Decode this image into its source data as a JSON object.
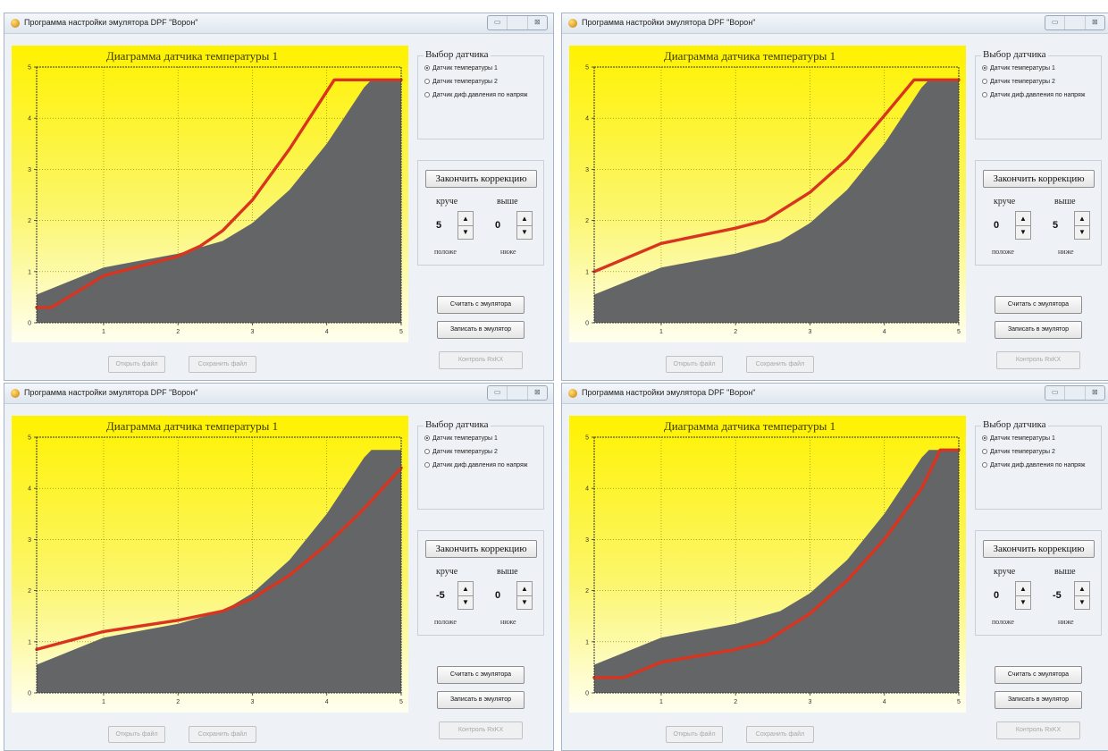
{
  "panels": [
    {
      "title": "Программа настройки эмулятора DPF \"Ворон\"",
      "window_buttons": [
        "▭",
        "",
        "⊠"
      ],
      "chart_data": {
        "type": "area",
        "title": "Диаграмма датчика температуры 1",
        "xlim": [
          0.1,
          5
        ],
        "ylim": [
          0,
          5
        ],
        "x_ticks": [
          "1",
          "2",
          "3",
          "4",
          "5"
        ],
        "y_ticks": [
          "0",
          "1",
          "2",
          "3",
          "4",
          "5"
        ],
        "grid": true,
        "series": [
          {
            "type": "area",
            "color": "#636567",
            "points": [
              [
                0.1,
                0.55
              ],
              [
                1,
                1.08
              ],
              [
                2,
                1.35
              ],
              [
                2.6,
                1.6
              ],
              [
                3,
                1.95
              ],
              [
                3.5,
                2.6
              ],
              [
                4,
                3.5
              ],
              [
                4.5,
                4.6
              ],
              [
                4.6,
                4.75
              ],
              [
                5,
                4.75
              ]
            ]
          },
          {
            "type": "line",
            "color": "#d9341f",
            "points": [
              [
                0.1,
                0.3
              ],
              [
                0.3,
                0.3
              ],
              [
                1,
                0.92
              ],
              [
                2,
                1.3
              ],
              [
                2.3,
                1.5
              ],
              [
                2.6,
                1.8
              ],
              [
                3,
                2.4
              ],
              [
                3.5,
                3.4
              ],
              [
                4.1,
                4.75
              ],
              [
                5,
                4.75
              ]
            ]
          }
        ]
      },
      "sensor_group": {
        "title": "Выбор датчика",
        "options": [
          "Датчик температуры 1",
          "Датчик температуры 2",
          "Датчик диф.давления по напряж"
        ],
        "selected": 0
      },
      "correction": {
        "button": "Закончить коррекцию",
        "steeper": "круче",
        "higher": "выше",
        "flatter": "положе",
        "lower": "ниже",
        "steep_value": "5",
        "height_value": "0"
      },
      "read_button": "Считать с эмулятора",
      "write_button": "Записать в эмулятор",
      "open_button": "Открыть файл",
      "save_button": "Сохранить файл",
      "control_button": "Контроль RxKX"
    },
    {
      "title": "Программа настройки эмулятора DPF \"Ворон\"",
      "window_buttons": [
        "▭",
        "",
        "⊠"
      ],
      "chart_data": {
        "type": "area",
        "title": "Диаграмма датчика температуры 1",
        "xlim": [
          0.1,
          5
        ],
        "ylim": [
          0,
          5
        ],
        "x_ticks": [
          "1",
          "2",
          "3",
          "4",
          "5"
        ],
        "y_ticks": [
          "0",
          "1",
          "2",
          "3",
          "4",
          "5"
        ],
        "grid": true,
        "series": [
          {
            "type": "area",
            "color": "#636567",
            "points": [
              [
                0.1,
                0.55
              ],
              [
                1,
                1.08
              ],
              [
                2,
                1.35
              ],
              [
                2.6,
                1.6
              ],
              [
                3,
                1.95
              ],
              [
                3.5,
                2.6
              ],
              [
                4,
                3.5
              ],
              [
                4.5,
                4.6
              ],
              [
                4.6,
                4.75
              ],
              [
                5,
                4.75
              ]
            ]
          },
          {
            "type": "line",
            "color": "#d9341f",
            "points": [
              [
                0.1,
                1.0
              ],
              [
                1,
                1.55
              ],
              [
                2,
                1.85
              ],
              [
                2.4,
                2.0
              ],
              [
                3,
                2.55
              ],
              [
                3.5,
                3.2
              ],
              [
                4,
                4.05
              ],
              [
                4.4,
                4.75
              ],
              [
                5,
                4.75
              ]
            ]
          }
        ]
      },
      "sensor_group": {
        "title": "Выбор датчика",
        "options": [
          "Датчик температуры 1",
          "Датчик температуры 2",
          "Датчик диф.давления по напряж"
        ],
        "selected": 0
      },
      "correction": {
        "button": "Закончить коррекцию",
        "steeper": "круче",
        "higher": "выше",
        "flatter": "положе",
        "lower": "ниже",
        "steep_value": "0",
        "height_value": "5"
      },
      "read_button": "Считать с эмулятора",
      "write_button": "Записать в эмулятор",
      "open_button": "Открыть файл",
      "save_button": "Сохранить файл",
      "control_button": "Контроль RxKX"
    },
    {
      "title": "Программа настройки эмулятора DPF \"Ворон\"",
      "window_buttons": [
        "▭",
        "",
        "⊠"
      ],
      "chart_data": {
        "type": "area",
        "title": "Диаграмма датчика температуры 1",
        "xlim": [
          0.1,
          5
        ],
        "ylim": [
          0,
          5
        ],
        "x_ticks": [
          "1",
          "2",
          "3",
          "4",
          "5"
        ],
        "y_ticks": [
          "0",
          "1",
          "2",
          "3",
          "4",
          "5"
        ],
        "grid": true,
        "series": [
          {
            "type": "area",
            "color": "#636567",
            "points": [
              [
                0.1,
                0.55
              ],
              [
                1,
                1.08
              ],
              [
                2,
                1.35
              ],
              [
                2.6,
                1.6
              ],
              [
                3,
                1.95
              ],
              [
                3.5,
                2.6
              ],
              [
                4,
                3.5
              ],
              [
                4.5,
                4.6
              ],
              [
                4.6,
                4.75
              ],
              [
                5,
                4.75
              ]
            ]
          },
          {
            "type": "line",
            "color": "#d9341f",
            "points": [
              [
                0.1,
                0.85
              ],
              [
                1,
                1.2
              ],
              [
                2,
                1.42
              ],
              [
                2.6,
                1.6
              ],
              [
                3,
                1.85
              ],
              [
                3.5,
                2.3
              ],
              [
                4,
                2.9
              ],
              [
                4.5,
                3.6
              ],
              [
                5,
                4.4
              ]
            ]
          }
        ]
      },
      "sensor_group": {
        "title": "Выбор датчика",
        "options": [
          "Датчик температуры 1",
          "Датчик температуры 2",
          "Датчик диф.давления по напряж"
        ],
        "selected": 0
      },
      "correction": {
        "button": "Закончить коррекцию",
        "steeper": "круче",
        "higher": "выше",
        "flatter": "положе",
        "lower": "ниже",
        "steep_value": "-5",
        "height_value": "0"
      },
      "read_button": "Считать с эмулятора",
      "write_button": "Записать в эмулятор",
      "open_button": "Открыть файл",
      "save_button": "Сохранить файл",
      "control_button": "Контроль RxKX"
    },
    {
      "title": "Программа настройки эмулятора DPF \"Ворон\"",
      "window_buttons": [
        "▭",
        "",
        "⊠"
      ],
      "chart_data": {
        "type": "area",
        "title": "Диаграмма датчика температуры 1",
        "xlim": [
          0.1,
          5
        ],
        "ylim": [
          0,
          5
        ],
        "x_ticks": [
          "1",
          "2",
          "3",
          "4",
          "5"
        ],
        "y_ticks": [
          "0",
          "1",
          "2",
          "3",
          "4",
          "5"
        ],
        "grid": true,
        "series": [
          {
            "type": "area",
            "color": "#636567",
            "points": [
              [
                0.1,
                0.55
              ],
              [
                1,
                1.08
              ],
              [
                2,
                1.35
              ],
              [
                2.6,
                1.6
              ],
              [
                3,
                1.95
              ],
              [
                3.5,
                2.6
              ],
              [
                4,
                3.5
              ],
              [
                4.5,
                4.6
              ],
              [
                4.6,
                4.75
              ],
              [
                5,
                4.75
              ]
            ]
          },
          {
            "type": "line",
            "color": "#d9341f",
            "points": [
              [
                0.1,
                0.3
              ],
              [
                0.5,
                0.3
              ],
              [
                1,
                0.6
              ],
              [
                2,
                0.85
              ],
              [
                2.4,
                1.0
              ],
              [
                3,
                1.55
              ],
              [
                3.5,
                2.2
              ],
              [
                4,
                3.0
              ],
              [
                4.5,
                4.0
              ],
              [
                4.75,
                4.75
              ],
              [
                5,
                4.75
              ]
            ]
          }
        ]
      },
      "sensor_group": {
        "title": "Выбор датчика",
        "options": [
          "Датчик температуры 1",
          "Датчик температуры 2",
          "Датчик диф.давления по напряж"
        ],
        "selected": 0
      },
      "correction": {
        "button": "Закончить коррекцию",
        "steeper": "круче",
        "higher": "выше",
        "flatter": "положе",
        "lower": "ниже",
        "steep_value": "0",
        "height_value": "-5"
      },
      "read_button": "Считать с эмулятора",
      "write_button": "Записать в эмулятор",
      "open_button": "Открыть файл",
      "save_button": "Сохранить файл",
      "control_button": "Контроль RxKX"
    }
  ]
}
